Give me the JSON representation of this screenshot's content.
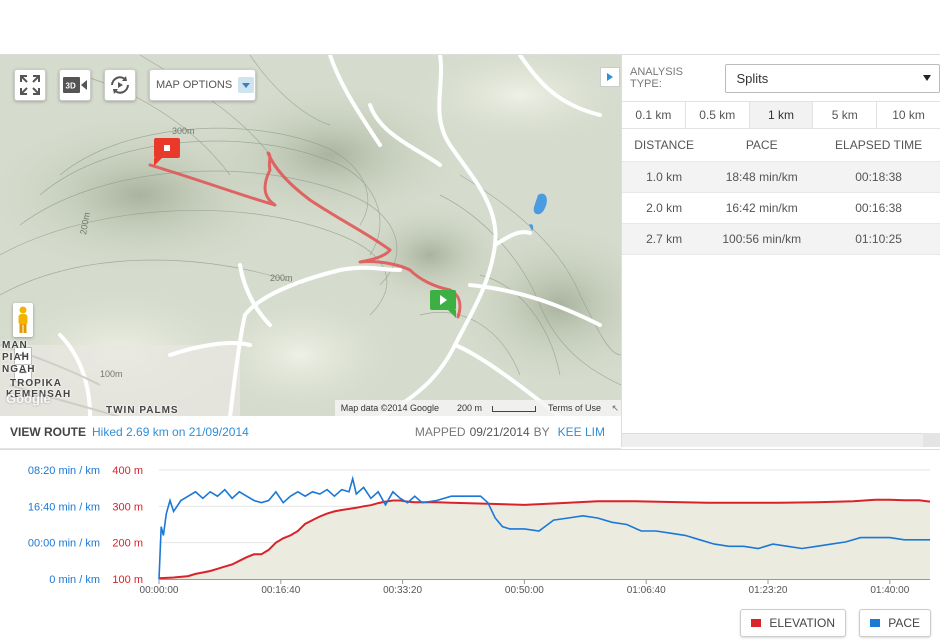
{
  "map": {
    "options_label": "MAP OPTIONS",
    "contour_labels": [
      "300m",
      "200m",
      "200m",
      "100m"
    ],
    "places": [
      "MAN",
      "PIAH",
      "NGAH",
      "TROPIKA",
      "KEMENSAH",
      "TWIN PALMS"
    ],
    "google_logo": "Google",
    "attribution": "Map data ©2014 Google",
    "scale_label": "200 m",
    "terms": "Terms of Use"
  },
  "route": {
    "view_label": "VIEW ROUTE",
    "hiked_text": "Hiked 2.69 km on 21/09/2014",
    "mapped_label": "MAPPED",
    "mapped_date": "09/21/2014",
    "by_label": "BY",
    "author": "KEE LIM"
  },
  "panel": {
    "analysis_label": "ANALYSIS TYPE:",
    "analysis_value": "Splits",
    "distance_tabs": [
      "0.1 km",
      "0.5 km",
      "1 km",
      "5 km",
      "10 km"
    ],
    "active_tab": 2,
    "columns": [
      "DISTANCE",
      "PACE",
      "ELAPSED TIME"
    ],
    "rows": [
      {
        "distance": "1.0 km",
        "pace": "18:48 min/km",
        "elapsed": "00:18:38"
      },
      {
        "distance": "2.0 km",
        "pace": "16:42 min/km",
        "elapsed": "00:16:38"
      },
      {
        "distance": "2.7 km",
        "pace": "100:56 min/km",
        "elapsed": "01:10:25"
      }
    ]
  },
  "chart_data": {
    "type": "line",
    "pace_ticks": [
      "08:20 min / km",
      "16:40 min / km",
      "00:00 min / km",
      "0 min / km"
    ],
    "elevation_ticks": [
      "400 m",
      "300 m",
      "200 m",
      "100 m"
    ],
    "elevation_tick_values": [
      400,
      300,
      200,
      100
    ],
    "x_ticks": [
      "00:00:00",
      "00:16:40",
      "00:33:20",
      "00:50:00",
      "01:06:40",
      "01:23:20",
      "01:40:00"
    ],
    "x_tick_minutes": [
      0,
      16.667,
      33.333,
      50,
      66.667,
      83.333,
      100
    ],
    "xlim_minutes": [
      0,
      105.5
    ],
    "ylim_elevation": [
      100,
      400
    ],
    "colors": {
      "elevation": "#d8232a",
      "pace": "#1a78d6",
      "fill": "#ecebe0"
    },
    "series": [
      {
        "name": "ELEVATION",
        "x": [
          0,
          2,
          4,
          5,
          6,
          7,
          8,
          9,
          10,
          11,
          12,
          13,
          14,
          15,
          16,
          17,
          18,
          19,
          20,
          21,
          22,
          23,
          24,
          25,
          26,
          27,
          28,
          29,
          30,
          31,
          32,
          33,
          34,
          35,
          36,
          37,
          38,
          40,
          45,
          50,
          55,
          60,
          65,
          70,
          75,
          80,
          85,
          90,
          95,
          98,
          100,
          102,
          104,
          105.5
        ],
        "values": [
          102,
          104,
          108,
          114,
          118,
          122,
          128,
          134,
          140,
          150,
          160,
          168,
          168,
          180,
          200,
          212,
          220,
          232,
          252,
          262,
          272,
          280,
          286,
          290,
          293,
          296,
          300,
          303,
          309,
          313,
          316,
          316,
          313,
          311,
          311,
          311,
          311,
          310,
          307,
          304,
          309,
          314,
          314,
          312,
          310,
          310,
          310,
          311,
          314,
          318,
          318,
          317,
          317,
          313
        ]
      },
      {
        "name": "PACE",
        "x": [
          0,
          0.3,
          0.6,
          1,
          1.5,
          2,
          3,
          4,
          5,
          6,
          7,
          8,
          9,
          10,
          11,
          12,
          13,
          14,
          15,
          16,
          17,
          18,
          19,
          20,
          21,
          22,
          23,
          24,
          25,
          26,
          26.5,
          27,
          28,
          29,
          30,
          31,
          32,
          33,
          34,
          35,
          36,
          38,
          40,
          42,
          44,
          45,
          46,
          47,
          48,
          50,
          52,
          54,
          56,
          58,
          60,
          62,
          64,
          66,
          68,
          70,
          72,
          74,
          76,
          78,
          80,
          82,
          84,
          86,
          88,
          90,
          92,
          94,
          96,
          98,
          100,
          102,
          104,
          105.5
        ],
        "values": [
          0,
          12,
          10,
          15,
          18,
          15.5,
          18,
          19,
          20,
          18.5,
          20,
          19,
          20.5,
          18.5,
          20,
          19,
          18,
          17.5,
          18,
          20,
          17.5,
          19,
          20,
          19,
          20,
          19.5,
          20.5,
          19,
          20.5,
          20,
          23,
          19.5,
          21,
          18.5,
          20,
          17,
          20,
          18.5,
          17.5,
          19,
          17.5,
          18,
          19,
          19,
          19,
          17.5,
          14,
          12,
          11.5,
          11.5,
          11,
          13.5,
          14,
          14.5,
          14,
          13,
          12.5,
          11,
          11,
          10.5,
          10,
          9,
          8,
          7.5,
          7.5,
          7,
          8,
          7.5,
          7,
          7.5,
          8,
          8.5,
          9.5,
          9.5,
          9.5,
          9,
          9,
          9
        ]
      }
    ]
  }
}
